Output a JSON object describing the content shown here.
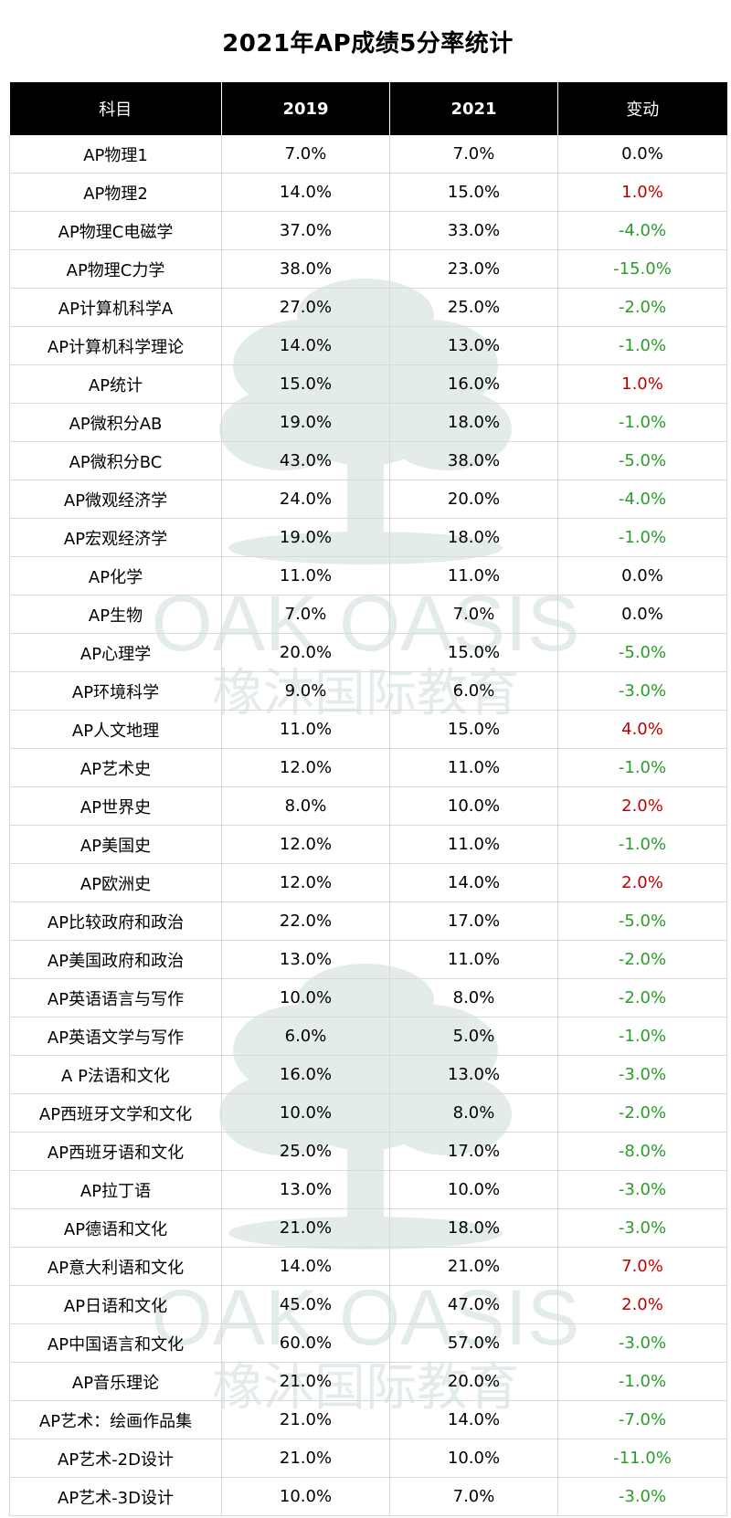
{
  "title": "2021年AP成绩5分率统计",
  "columns": [
    "科目",
    "2019",
    "2021",
    "变动"
  ],
  "watermark": {
    "brand_en": "OAK OASIS",
    "brand_cn": "橡沐国际教育"
  },
  "colors": {
    "header_bg": "#000000",
    "header_text": "#ffffff",
    "increase": "#c00000",
    "decrease": "#2a9d2a",
    "no_change": "#000000",
    "watermark": "#dfe9e5"
  },
  "rows": [
    {
      "subject": "AP物理1",
      "y2019": "7.0%",
      "y2021": "7.0%",
      "change": "0.0%",
      "trend": "flat"
    },
    {
      "subject": "AP物理2",
      "y2019": "14.0%",
      "y2021": "15.0%",
      "change": "1.0%",
      "trend": "up"
    },
    {
      "subject": "AP物理C电磁学",
      "y2019": "37.0%",
      "y2021": "33.0%",
      "change": "-4.0%",
      "trend": "down"
    },
    {
      "subject": "AP物理C力学",
      "y2019": "38.0%",
      "y2021": "23.0%",
      "change": "-15.0%",
      "trend": "down"
    },
    {
      "subject": "AP计算机科学A",
      "y2019": "27.0%",
      "y2021": "25.0%",
      "change": "-2.0%",
      "trend": "down"
    },
    {
      "subject": "AP计算机科学理论",
      "y2019": "14.0%",
      "y2021": "13.0%",
      "change": "-1.0%",
      "trend": "down"
    },
    {
      "subject": "AP统计",
      "y2019": "15.0%",
      "y2021": "16.0%",
      "change": "1.0%",
      "trend": "up"
    },
    {
      "subject": "AP微积分AB",
      "y2019": "19.0%",
      "y2021": "18.0%",
      "change": "-1.0%",
      "trend": "down"
    },
    {
      "subject": "AP微积分BC",
      "y2019": "43.0%",
      "y2021": "38.0%",
      "change": "-5.0%",
      "trend": "down"
    },
    {
      "subject": "AP微观经济学",
      "y2019": "24.0%",
      "y2021": "20.0%",
      "change": "-4.0%",
      "trend": "down"
    },
    {
      "subject": "AP宏观经济学",
      "y2019": "19.0%",
      "y2021": "18.0%",
      "change": "-1.0%",
      "trend": "down"
    },
    {
      "subject": "AP化学",
      "y2019": "11.0%",
      "y2021": "11.0%",
      "change": "0.0%",
      "trend": "flat"
    },
    {
      "subject": "AP生物",
      "y2019": "7.0%",
      "y2021": "7.0%",
      "change": "0.0%",
      "trend": "flat"
    },
    {
      "subject": "AP心理学",
      "y2019": "20.0%",
      "y2021": "15.0%",
      "change": "-5.0%",
      "trend": "down"
    },
    {
      "subject": "AP环境科学",
      "y2019": "9.0%",
      "y2021": "6.0%",
      "change": "-3.0%",
      "trend": "down"
    },
    {
      "subject": "AP人文地理",
      "y2019": "11.0%",
      "y2021": "15.0%",
      "change": "4.0%",
      "trend": "up"
    },
    {
      "subject": "AP艺术史",
      "y2019": "12.0%",
      "y2021": "11.0%",
      "change": "-1.0%",
      "trend": "down"
    },
    {
      "subject": "AP世界史",
      "y2019": "8.0%",
      "y2021": "10.0%",
      "change": "2.0%",
      "trend": "up"
    },
    {
      "subject": "AP美国史",
      "y2019": "12.0%",
      "y2021": "11.0%",
      "change": "-1.0%",
      "trend": "down"
    },
    {
      "subject": "AP欧洲史",
      "y2019": "12.0%",
      "y2021": "14.0%",
      "change": "2.0%",
      "trend": "up"
    },
    {
      "subject": "AP比较政府和政治",
      "y2019": "22.0%",
      "y2021": "17.0%",
      "change": "-5.0%",
      "trend": "down"
    },
    {
      "subject": "AP美国政府和政治",
      "y2019": "13.0%",
      "y2021": "11.0%",
      "change": "-2.0%",
      "trend": "down"
    },
    {
      "subject": "AP英语语言与写作",
      "y2019": "10.0%",
      "y2021": "8.0%",
      "change": "-2.0%",
      "trend": "down"
    },
    {
      "subject": "AP英语文学与写作",
      "y2019": "6.0%",
      "y2021": "5.0%",
      "change": "-1.0%",
      "trend": "down"
    },
    {
      "subject": "A P法语和文化",
      "y2019": "16.0%",
      "y2021": "13.0%",
      "change": "-3.0%",
      "trend": "down"
    },
    {
      "subject": "AP西班牙文学和文化",
      "y2019": "10.0%",
      "y2021": "8.0%",
      "change": "-2.0%",
      "trend": "down"
    },
    {
      "subject": "AP西班牙语和文化",
      "y2019": "25.0%",
      "y2021": "17.0%",
      "change": "-8.0%",
      "trend": "down"
    },
    {
      "subject": "AP拉丁语",
      "y2019": "13.0%",
      "y2021": "10.0%",
      "change": "-3.0%",
      "trend": "down"
    },
    {
      "subject": "AP德语和文化",
      "y2019": "21.0%",
      "y2021": "18.0%",
      "change": "-3.0%",
      "trend": "down"
    },
    {
      "subject": "AP意大利语和文化",
      "y2019": "14.0%",
      "y2021": "21.0%",
      "change": "7.0%",
      "trend": "up"
    },
    {
      "subject": "AP日语和文化",
      "y2019": "45.0%",
      "y2021": "47.0%",
      "change": "2.0%",
      "trend": "up"
    },
    {
      "subject": "AP中国语言和文化",
      "y2019": "60.0%",
      "y2021": "57.0%",
      "change": "-3.0%",
      "trend": "down"
    },
    {
      "subject": "AP音乐理论",
      "y2019": "21.0%",
      "y2021": "20.0%",
      "change": "-1.0%",
      "trend": "down"
    },
    {
      "subject": "AP艺术：绘画作品集",
      "y2019": "21.0%",
      "y2021": "14.0%",
      "change": "-7.0%",
      "trend": "down"
    },
    {
      "subject": "AP艺术-2D设计",
      "y2019": "21.0%",
      "y2021": "10.0%",
      "change": "-11.0%",
      "trend": "down"
    },
    {
      "subject": "AP艺术-3D设计",
      "y2019": "10.0%",
      "y2021": "7.0%",
      "change": "-3.0%",
      "trend": "down"
    }
  ]
}
